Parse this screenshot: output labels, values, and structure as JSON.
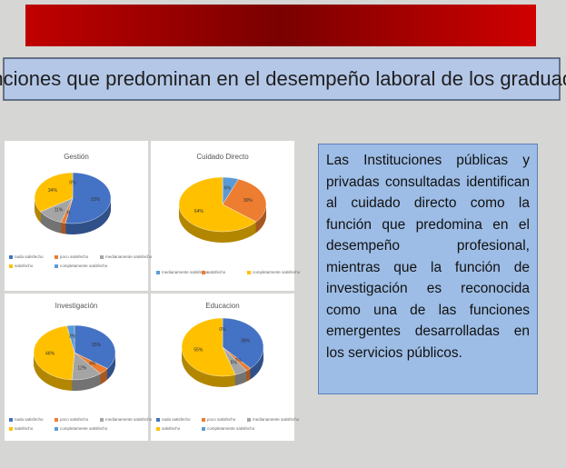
{
  "title": "Funciones que predominan en el desempeño laboral de los graduados",
  "text": "Las Instituciones públicas y privadas consultadas identifican al cuidado directo como la función que predomina en el desempeño profesional, mientras que la función de investigación es reconocida como una de las funciones emergentes desarrolladas en los servicios públicos.",
  "chart_data": [
    {
      "type": "pie",
      "title": "Gestión",
      "categories": [
        "nada satisfecho",
        "poco satisfecho",
        "medianamente satisfecho",
        "satisfecho",
        "completamente satisfecho"
      ],
      "values": [
        53,
        2,
        11,
        34,
        0
      ],
      "value_labels": [
        "53%",
        "2%",
        "11%",
        "34%",
        "0%"
      ],
      "colors": [
        "#4472c4",
        "#ed7d31",
        "#a5a5a5",
        "#ffc000",
        "#5b9bd5"
      ]
    },
    {
      "type": "pie",
      "title": "Cuidado Directo",
      "categories": [
        "medianamente satisfecho",
        "satisfecho",
        "completamente satisfecho"
      ],
      "values": [
        6,
        30,
        64
      ],
      "value_labels": [
        "6%",
        "30%",
        "64%"
      ],
      "colors": [
        "#5b9bd5",
        "#ed7d31",
        "#ffc000"
      ]
    },
    {
      "type": "pie",
      "title": "Investigación",
      "categories": [
        "nada satisfecho",
        "poco satisfecho",
        "medianamente satisfecho",
        "satisfecho",
        "completamente satisfecho"
      ],
      "values": [
        35,
        4,
        12,
        46,
        3
      ],
      "value_labels": [
        "35%",
        "4%",
        "12%",
        "46%",
        "3%"
      ],
      "colors": [
        "#4472c4",
        "#ed7d31",
        "#a5a5a5",
        "#ffc000",
        "#5b9bd5"
      ]
    },
    {
      "type": "pie",
      "title": "Educacion",
      "categories": [
        "nada satisfecho",
        "poco satisfecho",
        "medianamente satisfecho",
        "satisfecho",
        "completamente satisfecho"
      ],
      "values": [
        38,
        2,
        5,
        55,
        0
      ],
      "value_labels": [
        "38%",
        "2%",
        "5%",
        "55%",
        "0%"
      ],
      "colors": [
        "#4472c4",
        "#ed7d31",
        "#a5a5a5",
        "#ffc000",
        "#5b9bd5"
      ]
    }
  ]
}
